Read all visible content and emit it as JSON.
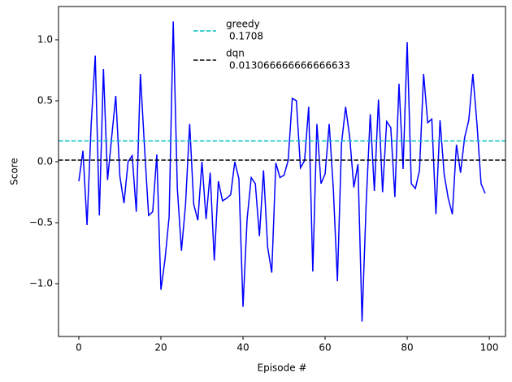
{
  "chart_data": {
    "type": "line",
    "x_label": "Episode #",
    "y_label": "Score",
    "x": [
      0,
      1,
      2,
      3,
      4,
      5,
      6,
      7,
      8,
      9,
      10,
      11,
      12,
      13,
      14,
      15,
      16,
      17,
      18,
      19,
      20,
      21,
      22,
      23,
      24,
      25,
      26,
      27,
      28,
      29,
      30,
      31,
      32,
      33,
      34,
      35,
      36,
      37,
      38,
      39,
      40,
      41,
      42,
      43,
      44,
      45,
      46,
      47,
      48,
      49,
      50,
      51,
      52,
      53,
      54,
      55,
      56,
      57,
      58,
      59,
      60,
      61,
      62,
      63,
      64,
      65,
      66,
      67,
      68,
      69,
      70,
      71,
      72,
      73,
      74,
      75,
      76,
      77,
      78,
      79,
      80,
      81,
      82,
      83,
      84,
      85,
      86,
      87,
      88,
      89,
      90,
      91,
      92,
      93,
      94,
      95,
      96,
      97,
      98,
      99
    ],
    "series": [
      {
        "color": "#0000ff",
        "values": [
          -0.16,
          0.09,
          -0.52,
          0.3,
          0.87,
          -0.44,
          0.76,
          -0.15,
          0.2,
          0.54,
          -0.12,
          -0.34,
          0.0,
          0.05,
          -0.41,
          0.72,
          0.12,
          -0.44,
          -0.41,
          0.06,
          -1.05,
          -0.8,
          -0.45,
          1.15,
          -0.22,
          -0.73,
          -0.35,
          0.31,
          -0.35,
          -0.48,
          0.0,
          -0.47,
          -0.09,
          -0.81,
          -0.16,
          -0.32,
          -0.3,
          -0.27,
          0.0,
          -0.14,
          -1.19,
          -0.47,
          -0.13,
          -0.18,
          -0.61,
          -0.07,
          -0.7,
          -0.91,
          -0.01,
          -0.13,
          -0.11,
          0.01,
          0.52,
          0.5,
          -0.05,
          0.01,
          0.45,
          -0.9,
          0.31,
          -0.18,
          -0.1,
          0.31,
          -0.22,
          -0.98,
          0.15,
          0.45,
          0.2,
          -0.21,
          -0.02,
          -1.31,
          -0.35,
          0.39,
          -0.24,
          0.51,
          -0.25,
          0.33,
          0.28,
          -0.29,
          0.64,
          -0.06,
          0.98,
          -0.18,
          -0.22,
          -0.07,
          0.72,
          0.32,
          0.35,
          -0.43,
          0.34,
          -0.1,
          -0.3,
          -0.43,
          0.14,
          -0.09,
          0.2,
          0.34,
          0.72,
          0.31,
          -0.18,
          -0.26
        ]
      }
    ],
    "reference_lines": [
      {
        "name": "greedy",
        "value": 0.1708,
        "color": "#00bfbf"
      },
      {
        "name": "dqn",
        "value": 0.013066666666666633,
        "color": "#000000"
      }
    ],
    "xlim": [
      -4.95,
      103.95
    ],
    "ylim": [
      -1.433,
      1.273
    ],
    "xticks": [
      0,
      20,
      40,
      60,
      80,
      100
    ],
    "yticks": [
      {
        "value": -1.0,
        "label": "−1.0"
      },
      {
        "value": -0.5,
        "label": "−0.5"
      },
      {
        "value": 0,
        "label": "0.0"
      },
      {
        "value": 0.5,
        "label": "0.5"
      },
      {
        "value": 1.0,
        "label": "1.0"
      }
    ]
  }
}
